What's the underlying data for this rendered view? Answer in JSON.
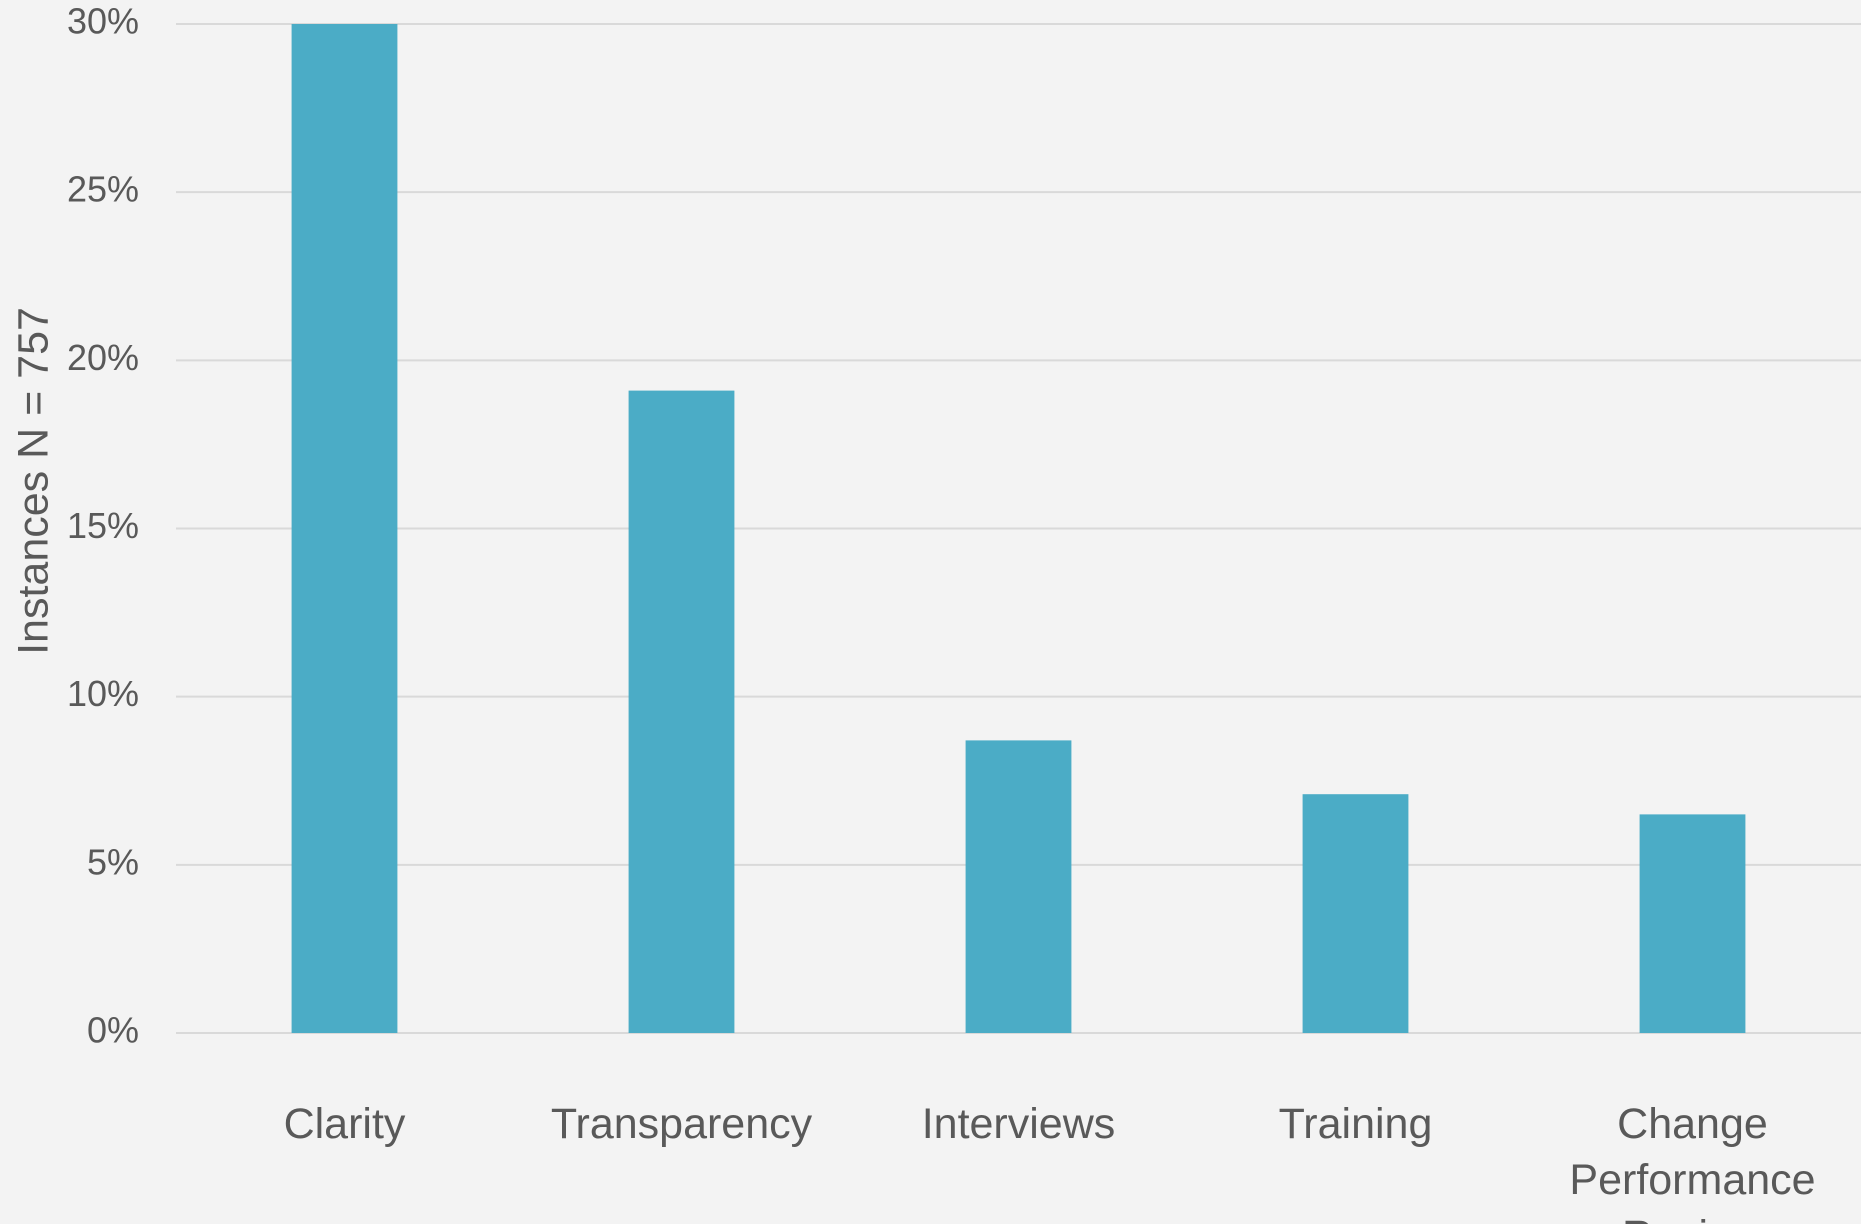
{
  "chart_data": {
    "type": "bar",
    "y_label": "Instances N = 757",
    "categories": [
      "Clarity",
      "Transparency",
      "Interviews",
      "Training",
      "Change Performance Review"
    ],
    "values": [
      30,
      19.1,
      8.7,
      7.1,
      6.5
    ],
    "color": "#4bacc6",
    "ylim": [
      0,
      30
    ],
    "yticks": [
      {
        "value": 0,
        "label": "0%"
      },
      {
        "value": 5,
        "label": "5%"
      },
      {
        "value": 10,
        "label": "10%"
      },
      {
        "value": 15,
        "label": "15%"
      },
      {
        "value": 20,
        "label": "20%"
      },
      {
        "value": 25,
        "label": "25%"
      },
      {
        "value": 30,
        "label": "30%"
      }
    ],
    "grid": true
  }
}
